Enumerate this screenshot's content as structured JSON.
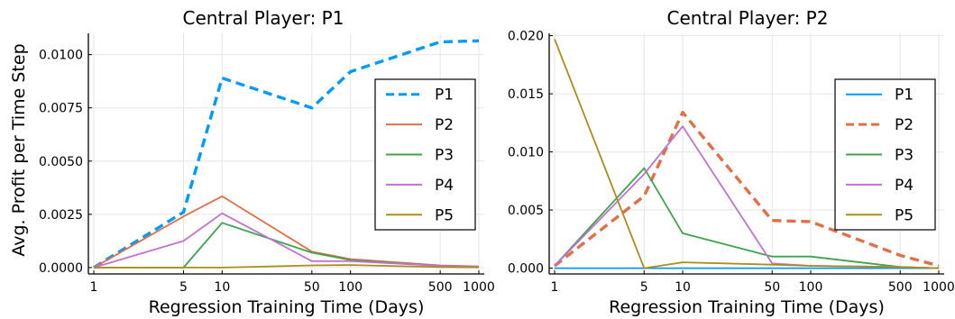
{
  "chart_data": [
    {
      "type": "line",
      "title": "Central Player: P1",
      "xlabel": "Regression Training Time (Days)",
      "ylabel": "Avg. Profit per Time Step",
      "x_scale": "log",
      "x": [
        1,
        5,
        10,
        50,
        100,
        500,
        1000
      ],
      "xticks": [
        "1",
        "5",
        "10",
        "50",
        "100",
        "500",
        "1000"
      ],
      "yticks": [
        "0.0000",
        "0.0025",
        "0.0050",
        "0.0075",
        "0.0100"
      ],
      "xlim": [
        1,
        1000
      ],
      "ylim": [
        -0.0003,
        0.011
      ],
      "grid": true,
      "legend_position": "right",
      "series": [
        {
          "name": "P1",
          "color": "#009af9",
          "dashed": true,
          "values": [
            0.0,
            0.0026,
            0.0089,
            0.0075,
            0.0092,
            0.0106,
            0.01065
          ]
        },
        {
          "name": "P2",
          "color": "#e26f46",
          "dashed": false,
          "values": [
            0.0,
            0.0024,
            0.00335,
            0.00075,
            0.0004,
            0.0001,
            5e-05
          ]
        },
        {
          "name": "P3",
          "color": "#3da44d",
          "dashed": false,
          "values": [
            0.0,
            0.0,
            0.0021,
            0.0007,
            0.00035,
            8e-05,
            3e-05
          ]
        },
        {
          "name": "P4",
          "color": "#c271d2",
          "dashed": false,
          "values": [
            0.0,
            0.00125,
            0.00255,
            0.0003,
            0.0003,
            8e-05,
            3e-05
          ]
        },
        {
          "name": "P5",
          "color": "#ac8d18",
          "dashed": false,
          "values": [
            0.0,
            0.0,
            0.0,
            0.0001,
            0.00012,
            2e-05,
            1e-05
          ]
        }
      ]
    },
    {
      "type": "line",
      "title": "Central Player: P2",
      "xlabel": "Regression Training Time (Days)",
      "ylabel": "",
      "x_scale": "log",
      "x": [
        1,
        5,
        10,
        50,
        100,
        500,
        1000
      ],
      "xticks": [
        "1",
        "5",
        "10",
        "50",
        "100",
        "500",
        "1000"
      ],
      "yticks": [
        "0.000",
        "0.005",
        "0.010",
        "0.015",
        "0.020"
      ],
      "xlim": [
        1,
        1000
      ],
      "ylim": [
        -0.0005,
        0.0202
      ],
      "grid": true,
      "legend_position": "right",
      "series": [
        {
          "name": "P1",
          "color": "#009af9",
          "dashed": false,
          "values": [
            0.0,
            0.0,
            0.0,
            0.0,
            0.0,
            0.0,
            0.0
          ]
        },
        {
          "name": "P2",
          "color": "#e26f46",
          "dashed": true,
          "values": [
            0.0002,
            0.0062,
            0.0134,
            0.0041,
            0.004,
            0.0011,
            0.0002
          ]
        },
        {
          "name": "P3",
          "color": "#3da44d",
          "dashed": false,
          "values": [
            0.0002,
            0.0086,
            0.003,
            0.001,
            0.001,
            0.0001,
            0.0
          ]
        },
        {
          "name": "P4",
          "color": "#c271d2",
          "dashed": false,
          "values": [
            0.0002,
            0.0081,
            0.0122,
            0.0004,
            0.0002,
            0.0001,
            0.0
          ]
        },
        {
          "name": "P5",
          "color": "#ac8d18",
          "dashed": false,
          "values": [
            0.0197,
            0.0,
            0.0005,
            0.0003,
            0.0002,
            0.0001,
            0.0
          ]
        }
      ]
    }
  ]
}
